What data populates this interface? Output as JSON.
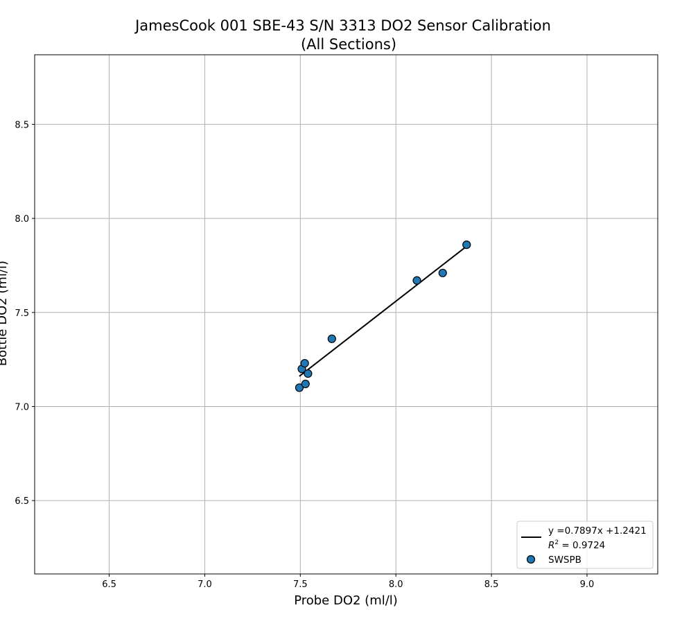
{
  "chart_data": {
    "type": "scatter",
    "title": "JamesCook 001 SBE-43 S/N 3313 DO2 Sensor Calibration",
    "subtitle": "(All Sections)",
    "xlabel": "Probe DO2 (ml/l)",
    "ylabel": "Bottle DO2 (ml/l)",
    "xlim": [
      6.11,
      9.37
    ],
    "ylim": [
      6.11,
      8.87
    ],
    "xticks": [
      "6.5",
      "7.0",
      "7.5",
      "8.0",
      "8.5",
      "9.0"
    ],
    "yticks": [
      "6.5",
      "7.0",
      "7.5",
      "8.0",
      "8.5"
    ],
    "grid": true,
    "legend_position": "bottom-right",
    "series": [
      {
        "name": "SWSPB",
        "kind": "scatter",
        "color": "#1f77b4",
        "edge_color": "#000000",
        "x": [
          7.495,
          7.508,
          7.523,
          7.527,
          7.54,
          7.665,
          8.11,
          8.245,
          8.37
        ],
        "y": [
          7.1,
          7.2,
          7.23,
          7.12,
          7.175,
          7.36,
          7.67,
          7.71,
          7.86
        ]
      }
    ],
    "fit": {
      "kind": "line",
      "color": "#000000",
      "slope": 0.7897,
      "intercept": 1.2421,
      "x_range": [
        7.495,
        8.37
      ],
      "equation_label": "y =0.7897x +1.2421",
      "r2_prefix": "R",
      "r2_sup": "2",
      "r2_value": " = 0.9724"
    }
  }
}
